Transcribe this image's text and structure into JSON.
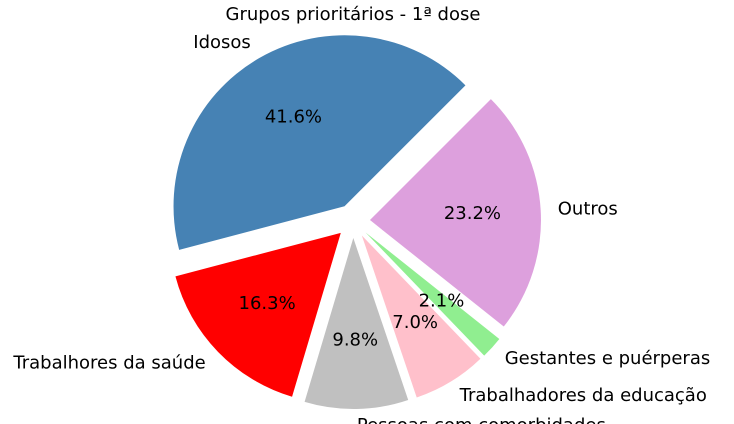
{
  "chart_data": {
    "type": "pie",
    "title": "Grupos prioritários - 1ª dose",
    "slices": [
      {
        "label": "Idosos",
        "value": 41.6,
        "pct_label": "41.6%",
        "color": "#4682b4",
        "exploded": true
      },
      {
        "label": "Trabalhores da saúde",
        "value": 16.3,
        "pct_label": "16.3%",
        "color": "#ff0000",
        "exploded": true
      },
      {
        "label": "Pessoas com comorbidades",
        "value": 9.8,
        "pct_label": "9.8%",
        "color": "#c0c0c0",
        "exploded": true
      },
      {
        "label": "Trabalhadores da educação",
        "value": 7.0,
        "pct_label": "7.0%",
        "color": "#ffc0cb",
        "exploded": true
      },
      {
        "label": "Gestantes e puérperas",
        "value": 2.1,
        "pct_label": "2.1%",
        "color": "#90ee90",
        "exploded": true
      },
      {
        "label": "Outros",
        "value": 23.2,
        "pct_label": "23.2%",
        "color": "#dda0dd",
        "exploded": true
      }
    ],
    "start_angle_deg": 45,
    "direction": "counterclockwise"
  }
}
